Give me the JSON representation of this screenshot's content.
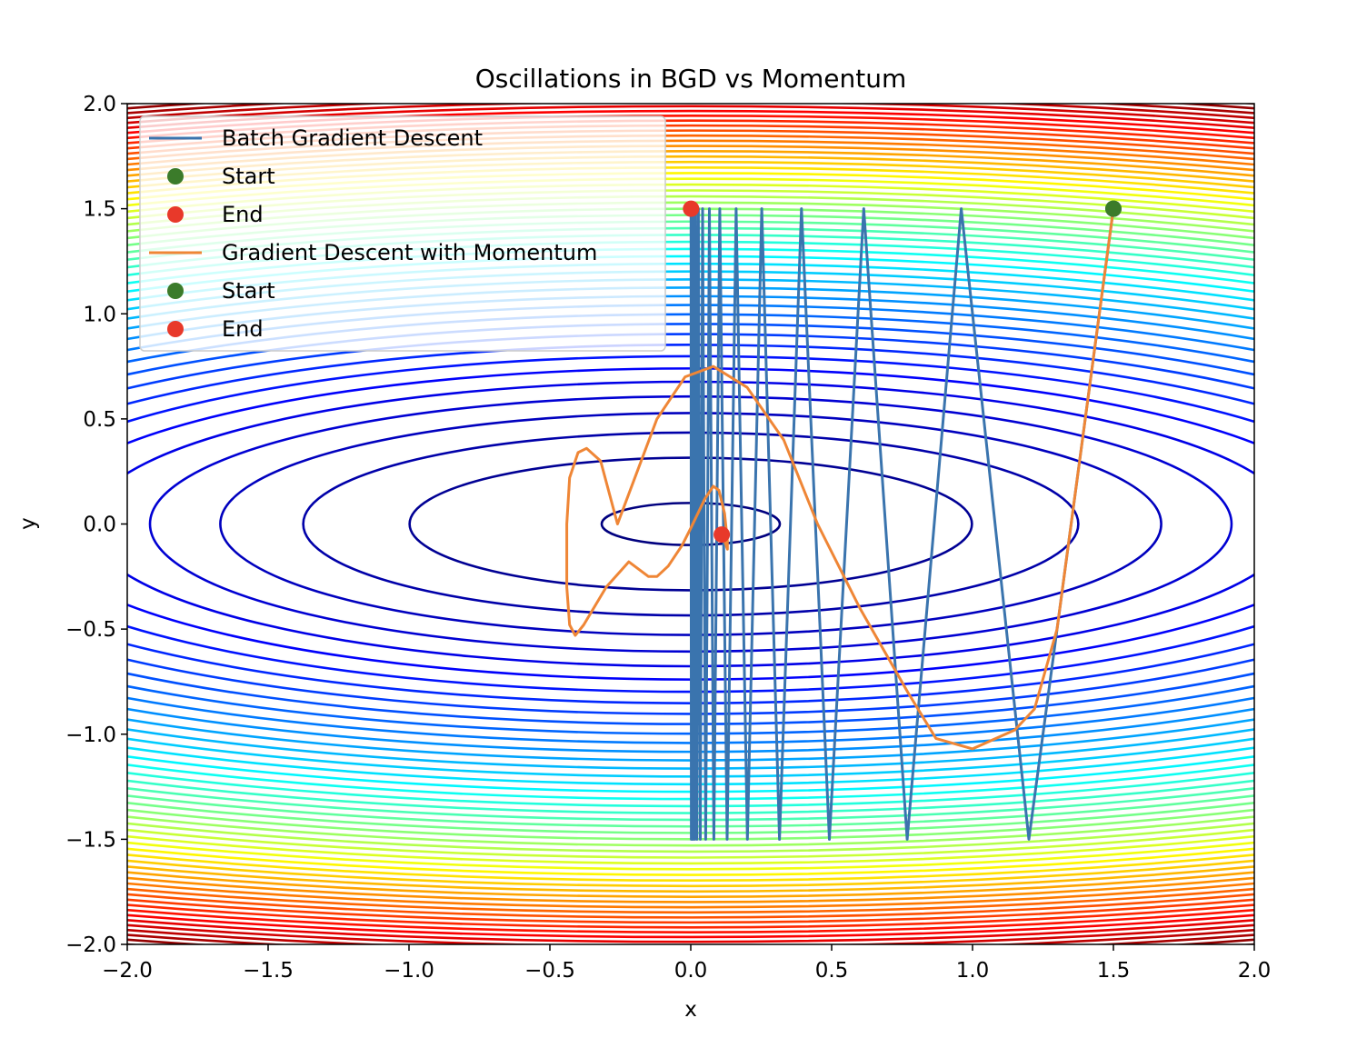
{
  "chart_data": {
    "type": "line",
    "title": "Oscillations in BGD vs Momentum",
    "xlabel": "x",
    "ylabel": "y",
    "xlim": [
      -2.0,
      2.0
    ],
    "ylim": [
      -2.0,
      2.0
    ],
    "x_ticks": [
      "−2.0",
      "−1.5",
      "−1.0",
      "−0.5",
      "0.0",
      "0.5",
      "1.0",
      "1.5",
      "2.0"
    ],
    "y_ticks": [
      "−2.0",
      "−1.5",
      "−1.0",
      "−0.5",
      "0.0",
      "0.5",
      "1.0",
      "1.5",
      "2.0"
    ],
    "grid": false,
    "legend_position": "top-left",
    "contour": {
      "function": "x^2 + 10*y^2",
      "colormap": "jet",
      "levels": 50,
      "level_min": 0.1,
      "level_max": 44.0,
      "colors": [
        "#00007f",
        "#0000ff",
        "#007fff",
        "#00ffff",
        "#7fff7f",
        "#ffff00",
        "#ff7f00",
        "#ff0000",
        "#7f0000"
      ]
    },
    "series": [
      {
        "name": "Batch Gradient Descent",
        "color": "#3a74ae",
        "points": [
          [
            1.5,
            1.5
          ],
          [
            1.2,
            -1.5
          ],
          [
            0.96,
            1.5
          ],
          [
            0.768,
            -1.5
          ],
          [
            0.614,
            1.5
          ],
          [
            0.492,
            -1.5
          ],
          [
            0.393,
            1.5
          ],
          [
            0.315,
            -1.5
          ],
          [
            0.252,
            1.5
          ],
          [
            0.201,
            -1.5
          ],
          [
            0.161,
            1.5
          ],
          [
            0.129,
            -1.5
          ],
          [
            0.103,
            1.5
          ],
          [
            0.082,
            -1.5
          ],
          [
            0.066,
            1.5
          ],
          [
            0.053,
            -1.5
          ],
          [
            0.042,
            1.5
          ],
          [
            0.034,
            -1.5
          ],
          [
            0.027,
            1.5
          ],
          [
            0.022,
            -1.5
          ],
          [
            0.017,
            1.5
          ],
          [
            0.014,
            -1.5
          ],
          [
            0.011,
            1.5
          ],
          [
            0.009,
            -1.5
          ],
          [
            0.007,
            1.5
          ],
          [
            0.006,
            -1.5
          ],
          [
            0.005,
            1.5
          ],
          [
            0.004,
            -1.5
          ],
          [
            0.003,
            1.5
          ],
          [
            0.002,
            -1.5
          ],
          [
            0.001,
            1.5
          ]
        ],
        "start": [
          1.5,
          1.5
        ],
        "end": [
          0.001,
          1.5
        ]
      },
      {
        "name": "Gradient Descent with Momentum",
        "color": "#ef8636",
        "points": [
          [
            1.5,
            1.5
          ],
          [
            1.4,
            0.5
          ],
          [
            1.3,
            -0.5
          ],
          [
            1.22,
            -0.88
          ],
          [
            1.15,
            -0.98
          ],
          [
            1.0,
            -1.07
          ],
          [
            0.87,
            -1.02
          ],
          [
            0.77,
            -0.8
          ],
          [
            0.6,
            -0.4
          ],
          [
            0.45,
            0.0
          ],
          [
            0.33,
            0.4
          ],
          [
            0.2,
            0.65
          ],
          [
            0.08,
            0.75
          ],
          [
            -0.02,
            0.7
          ],
          [
            -0.12,
            0.5
          ],
          [
            -0.19,
            0.25
          ],
          [
            -0.26,
            0.0
          ],
          [
            -0.32,
            0.3
          ],
          [
            -0.37,
            0.36
          ],
          [
            -0.4,
            0.34
          ],
          [
            -0.43,
            0.22
          ],
          [
            -0.44,
            0.0
          ],
          [
            -0.44,
            -0.3
          ],
          [
            -0.43,
            -0.48
          ],
          [
            -0.41,
            -0.53
          ],
          [
            -0.38,
            -0.48
          ],
          [
            -0.3,
            -0.3
          ],
          [
            -0.22,
            -0.18
          ],
          [
            -0.15,
            -0.25
          ],
          [
            -0.12,
            -0.25
          ],
          [
            -0.08,
            -0.2
          ],
          [
            -0.03,
            -0.1
          ],
          [
            0.0,
            -0.02
          ],
          [
            0.05,
            0.12
          ],
          [
            0.08,
            0.18
          ],
          [
            0.1,
            0.16
          ],
          [
            0.12,
            0.05
          ],
          [
            0.13,
            -0.08
          ],
          [
            0.13,
            -0.12
          ],
          [
            0.12,
            -0.08
          ],
          [
            0.11,
            -0.05
          ]
        ],
        "start": [
          1.5,
          1.5
        ],
        "end": [
          0.11,
          -0.05
        ]
      }
    ],
    "legend": [
      {
        "label": "Batch Gradient Descent",
        "kind": "line",
        "color": "#3a74ae"
      },
      {
        "label": "Start",
        "kind": "marker",
        "color": "#3b7b2a"
      },
      {
        "label": "End",
        "kind": "marker",
        "color": "#e8392a"
      },
      {
        "label": "Gradient Descent with Momentum",
        "kind": "line",
        "color": "#ef8636"
      },
      {
        "label": "Start",
        "kind": "marker",
        "color": "#3b7b2a"
      },
      {
        "label": "End",
        "kind": "marker",
        "color": "#e8392a"
      }
    ]
  }
}
